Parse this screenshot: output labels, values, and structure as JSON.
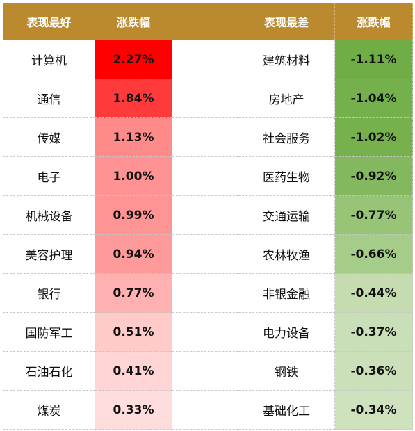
{
  "header": {
    "best_title": "表现最好",
    "best_change": "涨跌幅",
    "worst_title": "表现最差",
    "worst_change": "涨跌幅"
  },
  "best": [
    {
      "name": "计算机",
      "change": "2.27%",
      "color": "#ff0000"
    },
    {
      "name": "通信",
      "change": "1.84%",
      "color": "#ff3a3a"
    },
    {
      "name": "传媒",
      "change": "1.13%",
      "color": "#ff8a8a"
    },
    {
      "name": "电子",
      "change": "1.00%",
      "color": "#ff9393"
    },
    {
      "name": "机械设备",
      "change": "0.99%",
      "color": "#ff9494"
    },
    {
      "name": "美容护理",
      "change": "0.94%",
      "color": "#ff9a9a"
    },
    {
      "name": "银行",
      "change": "0.77%",
      "color": "#ffb0b0"
    },
    {
      "name": "国防军工",
      "change": "0.51%",
      "color": "#ffcaca"
    },
    {
      "name": "石油石化",
      "change": "0.41%",
      "color": "#ffd4d4"
    },
    {
      "name": "煤炭",
      "change": "0.33%",
      "color": "#ffdddd"
    }
  ],
  "worst": [
    {
      "name": "建筑材料",
      "change": "-1.11%",
      "color": "#70ad47"
    },
    {
      "name": "房地产",
      "change": "-1.04%",
      "color": "#74b04c"
    },
    {
      "name": "社会服务",
      "change": "-1.02%",
      "color": "#76b14e"
    },
    {
      "name": "医药生物",
      "change": "-0.92%",
      "color": "#83b85e"
    },
    {
      "name": "交通运输",
      "change": "-0.77%",
      "color": "#98c477"
    },
    {
      "name": "农林牧渔",
      "change": "-0.66%",
      "color": "#a6cc8a"
    },
    {
      "name": "非银金融",
      "change": "-0.44%",
      "color": "#c4dcb0"
    },
    {
      "name": "电力设备",
      "change": "-0.37%",
      "color": "#c9dfb7"
    },
    {
      "name": "钢铁",
      "change": "-0.36%",
      "color": "#cbe0b9"
    },
    {
      "name": "基础化工",
      "change": "-0.34%",
      "color": "#cee2bd"
    }
  ]
}
